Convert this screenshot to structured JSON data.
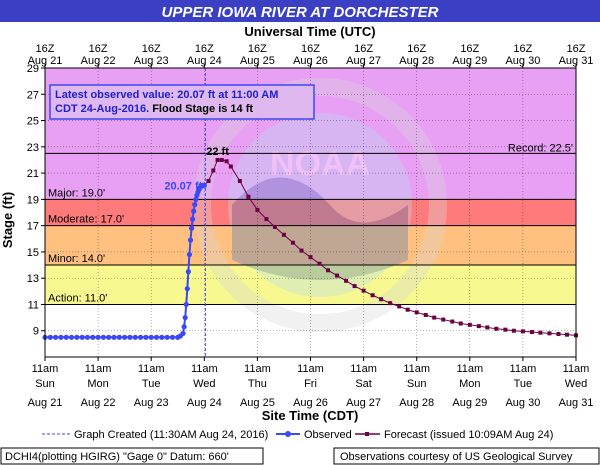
{
  "banner": {
    "title": "UPPER IOWA RIVER AT DORCHESTER"
  },
  "top_axis": {
    "title": "Universal Time (UTC)",
    "ticks": [
      {
        "hour": "16Z",
        "date": "Aug 21"
      },
      {
        "hour": "16Z",
        "date": "Aug 22"
      },
      {
        "hour": "16Z",
        "date": "Aug 23"
      },
      {
        "hour": "16Z",
        "date": "Aug 24"
      },
      {
        "hour": "16Z",
        "date": "Aug 25"
      },
      {
        "hour": "16Z",
        "date": "Aug 26"
      },
      {
        "hour": "16Z",
        "date": "Aug 27"
      },
      {
        "hour": "16Z",
        "date": "Aug 28"
      },
      {
        "hour": "16Z",
        "date": "Aug 29"
      },
      {
        "hour": "16Z",
        "date": "Aug 30"
      },
      {
        "hour": "16Z",
        "date": "Aug 31"
      }
    ]
  },
  "bottom_axis": {
    "title": "Site Time (CDT)",
    "ticks": [
      {
        "time": "11am",
        "day": "Sun",
        "date": "Aug 21"
      },
      {
        "time": "11am",
        "day": "Mon",
        "date": "Aug 22"
      },
      {
        "time": "11am",
        "day": "Tue",
        "date": "Aug 23"
      },
      {
        "time": "11am",
        "day": "Wed",
        "date": "Aug 24"
      },
      {
        "time": "11am",
        "day": "Thu",
        "date": "Aug 25"
      },
      {
        "time": "11am",
        "day": "Fri",
        "date": "Aug 26"
      },
      {
        "time": "11am",
        "day": "Sat",
        "date": "Aug 27"
      },
      {
        "time": "11am",
        "day": "Sun",
        "date": "Aug 28"
      },
      {
        "time": "11am",
        "day": "Mon",
        "date": "Aug 29"
      },
      {
        "time": "11am",
        "day": "Tue",
        "date": "Aug 30"
      },
      {
        "time": "11am",
        "day": "Wed",
        "date": "Aug 31"
      }
    ]
  },
  "y_axis": {
    "title": "Stage (ft)",
    "ticks": [
      "9",
      "11",
      "13",
      "15",
      "17",
      "19",
      "21",
      "23",
      "25",
      "27",
      "29"
    ]
  },
  "info_box": {
    "line1": "Latest observed value: 20.07 ft at 11:00 AM",
    "line2_blue": "CDT 24-Aug-2016.",
    "line2_black": " Flood Stage is 14 ft"
  },
  "colors": {
    "banner": "#3b3fc4",
    "observed": "#3a48f5",
    "forecast": "#6b0045",
    "record_band": "#e8a0f5",
    "major_band": "#ff7a7a",
    "moderate_band": "#ffc080",
    "minor_band": "#f8f890",
    "action_band": "#ffffff",
    "graph_created_line": "#3a48f5"
  },
  "legend": {
    "graph_created": "Graph Created (11:30AM Aug 24, 2016)",
    "observed": "Observed",
    "forecast": "Forecast (issued 10:09AM Aug 24)"
  },
  "footer": {
    "left": "DCHI4(plotting HGIRG) \"Gage 0\" Datum: 660'",
    "right": "Observations courtesy of US Geological Survey"
  },
  "watermark": {
    "text": "NOAA",
    "ring_text": "NATIONAL OCEANIC AND ATMOSPHERIC ADMINISTRATION  •  U.S. DEPARTMENT OF COMMERCE"
  },
  "chart_data": {
    "type": "line",
    "x_unit": "days after 11am CDT Aug 21",
    "ylim": [
      7,
      29
    ],
    "xlim": [
      0,
      10
    ],
    "thresholds": [
      {
        "name": "Record",
        "label": "Record: 22.5'",
        "value": 22.5
      },
      {
        "name": "Major",
        "label": "Major: 19.0'",
        "value": 19.0
      },
      {
        "name": "Moderate",
        "label": "Moderate: 17.0'",
        "value": 17.0
      },
      {
        "name": "Minor",
        "label": "Minor: 14.0'",
        "value": 14.0
      },
      {
        "name": "Action",
        "label": "Action: 11.0'",
        "value": 11.0
      }
    ],
    "graph_created_x": 3.02,
    "annotations": [
      {
        "text": "20.07 ft",
        "x": 3.0,
        "y": 20.07
      },
      {
        "text": "22 ft",
        "x": 3.25,
        "y": 22.0
      }
    ],
    "series": [
      {
        "name": "Observed",
        "x": [
          0,
          0.1,
          0.2,
          0.3,
          0.4,
          0.5,
          0.6,
          0.7,
          0.8,
          0.9,
          1.0,
          1.1,
          1.2,
          1.3,
          1.4,
          1.5,
          1.6,
          1.7,
          1.8,
          1.9,
          2.0,
          2.1,
          2.2,
          2.3,
          2.4,
          2.5,
          2.55,
          2.6,
          2.62,
          2.64,
          2.66,
          2.68,
          2.7,
          2.72,
          2.74,
          2.76,
          2.78,
          2.8,
          2.82,
          2.84,
          2.86,
          2.88,
          2.9,
          2.92,
          2.94,
          2.96,
          2.98,
          3.0
        ],
        "y": [
          8.5,
          8.5,
          8.5,
          8.5,
          8.5,
          8.5,
          8.5,
          8.5,
          8.5,
          8.5,
          8.5,
          8.5,
          8.5,
          8.5,
          8.5,
          8.5,
          8.5,
          8.5,
          8.5,
          8.5,
          8.5,
          8.5,
          8.5,
          8.5,
          8.5,
          8.5,
          8.6,
          8.8,
          9.3,
          10.0,
          11.0,
          12.2,
          13.5,
          14.8,
          15.9,
          16.8,
          17.5,
          18.1,
          18.6,
          19.0,
          19.3,
          19.55,
          19.75,
          19.9,
          20.0,
          20.05,
          20.07,
          20.07
        ]
      },
      {
        "name": "Forecast",
        "x": [
          3.0,
          3.08,
          3.17,
          3.25,
          3.33,
          3.42,
          3.5,
          3.67,
          3.83,
          4.0,
          4.17,
          4.33,
          4.5,
          4.67,
          4.83,
          5.0,
          5.17,
          5.33,
          5.5,
          5.67,
          5.83,
          6.0,
          6.17,
          6.33,
          6.5,
          6.67,
          6.83,
          7.0,
          7.17,
          7.33,
          7.5,
          7.67,
          7.83,
          8.0,
          8.17,
          8.33,
          8.5,
          8.67,
          8.83,
          9.0,
          9.17,
          9.33,
          9.5,
          9.67,
          9.83,
          10.0
        ],
        "y": [
          20.07,
          20.4,
          21.2,
          22.0,
          22.0,
          21.9,
          21.5,
          20.4,
          19.2,
          18.2,
          17.5,
          16.9,
          16.3,
          15.7,
          15.1,
          14.6,
          14.1,
          13.6,
          13.2,
          12.8,
          12.4,
          12.05,
          11.7,
          11.4,
          11.1,
          10.85,
          10.6,
          10.4,
          10.2,
          10.0,
          9.85,
          9.7,
          9.55,
          9.45,
          9.35,
          9.25,
          9.15,
          9.08,
          9.0,
          8.95,
          8.9,
          8.85,
          8.8,
          8.75,
          8.7,
          8.65
        ]
      }
    ]
  }
}
